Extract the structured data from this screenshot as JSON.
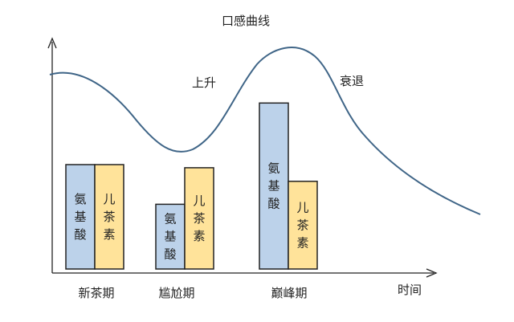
{
  "chart_data": {
    "type": "bar",
    "title": "口感曲线",
    "xlabel": "时间",
    "ylabel": "",
    "categories": [
      "新茶期",
      "尴尬期",
      "巅峰期"
    ],
    "series": [
      {
        "name": "氨基酸",
        "values": [
          100,
          62,
          159
        ],
        "color": "#bcd2ea"
      },
      {
        "name": "儿茶素",
        "values": [
          100,
          97,
          84
        ],
        "color": "#ffe39a"
      }
    ],
    "curve_labels": [
      "上升",
      "衰退"
    ],
    "curve_color": "#3f6587"
  }
}
